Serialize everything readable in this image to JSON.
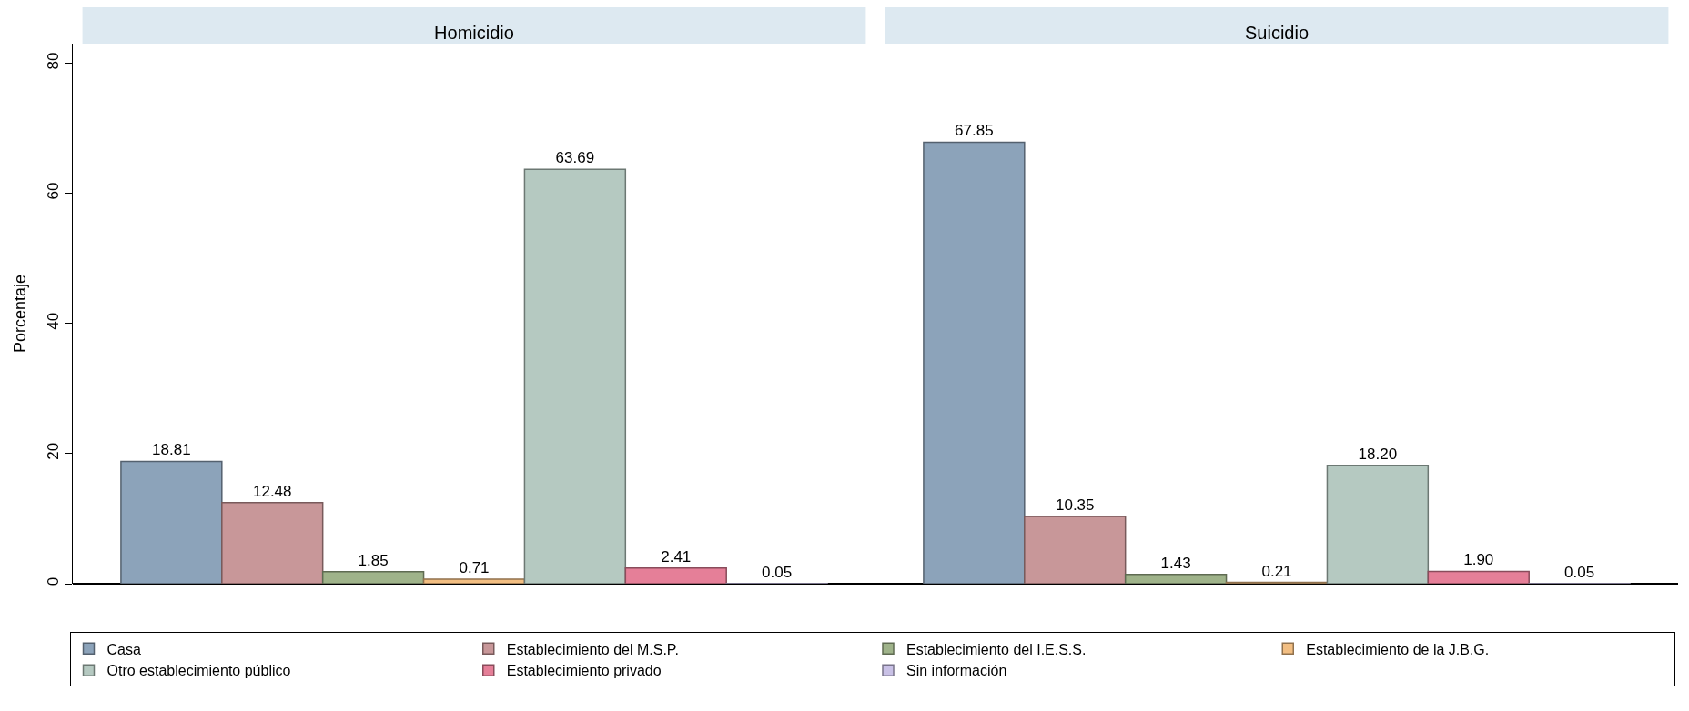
{
  "chart_data": {
    "type": "bar",
    "ylabel": "Porcentaje",
    "categories": [
      "Homicidio",
      "Suicidio"
    ],
    "ylim": [
      0,
      83
    ],
    "yticks": [
      0,
      20,
      40,
      60,
      80
    ],
    "legend": "bottom",
    "series": [
      {
        "name": "Casa",
        "color": "#8ca3ba",
        "values": [
          18.81,
          67.85
        ],
        "value_labels": [
          "18.81",
          "67.85"
        ]
      },
      {
        "name": "Establecimiento del M.S.P.",
        "color": "#c89799",
        "values": [
          12.48,
          10.35
        ],
        "value_labels": [
          "12.48",
          "10.35"
        ]
      },
      {
        "name": "Establecimiento del I.E.S.S.",
        "color": "#9fb38a",
        "values": [
          1.85,
          1.43
        ],
        "value_labels": [
          "1.85",
          "1.43"
        ]
      },
      {
        "name": "Establecimiento de la J.B.G.",
        "color": "#f2be82",
        "values": [
          0.71,
          0.21
        ],
        "value_labels": [
          "0.71",
          "0.21"
        ]
      },
      {
        "name": "Otro establecimiento público",
        "color": "#b5c9c1",
        "values": [
          63.69,
          18.2
        ],
        "value_labels": [
          "63.69",
          "18.20"
        ]
      },
      {
        "name": "Establecimiento privado",
        "color": "#e57f98",
        "values": [
          2.41,
          1.9
        ],
        "value_labels": [
          "2.41",
          "1.90"
        ]
      },
      {
        "name": "Sin información",
        "color": "#c9c1e6",
        "values": [
          0.05,
          0.05
        ],
        "value_labels": [
          "0.05",
          "0.05"
        ]
      }
    ]
  }
}
